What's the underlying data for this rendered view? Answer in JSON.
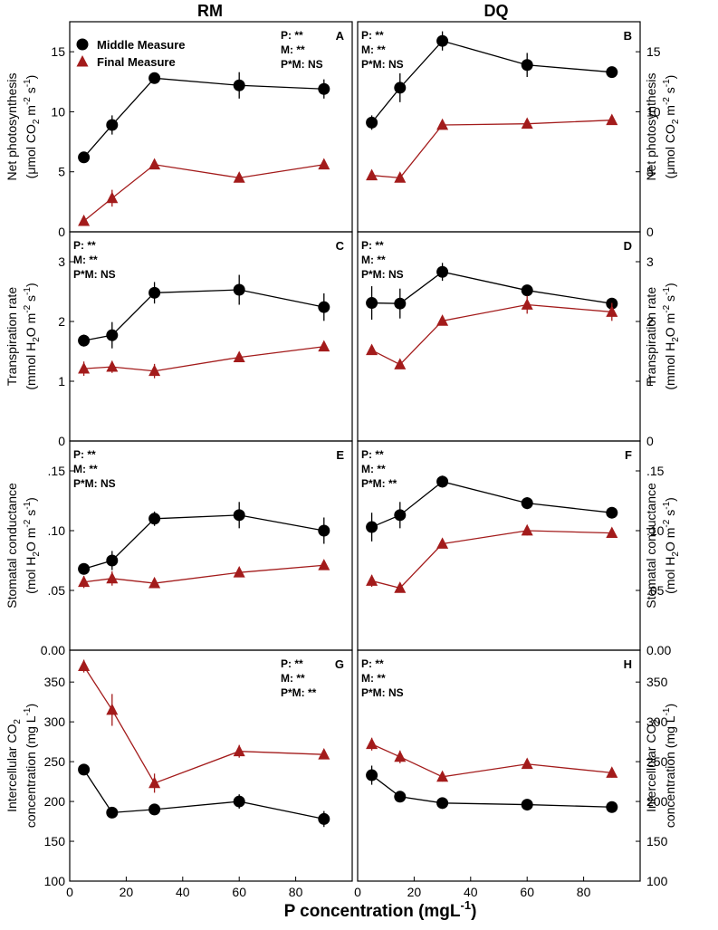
{
  "chart_data": {
    "type": "line",
    "column_titles": [
      "RM",
      "DQ"
    ],
    "xlabel": "P concentration (mgL",
    "xlabel_sup": "-1",
    "xlim": [
      0,
      100
    ],
    "xticks": [
      "0",
      "20",
      "40",
      "60",
      "80"
    ],
    "x": [
      5,
      15,
      30,
      60,
      90
    ],
    "legend": {
      "series": [
        {
          "name": "Middle Measure",
          "color": "#000000",
          "marker": "circle"
        },
        {
          "name": "Final Measure",
          "color": "#a31b1b",
          "marker": "triangle"
        }
      ],
      "location": "top-left"
    },
    "rows": [
      {
        "id": "photosynthesis",
        "ylabel_line1": "Net photosynthesis",
        "ylabel_line2": "(μmol CO",
        "ylabel_sub": "2",
        "ylabel_unit": " m",
        "ylabel_sup1": "-2",
        "ylabel_mid": " s",
        "ylabel_sup2": "-1",
        "ylabel_end": ")",
        "ylim": [
          0,
          17.5
        ],
        "yticks": [
          0,
          5,
          10,
          15
        ],
        "ytick_labels": [
          "0",
          "5",
          "10",
          "15"
        ],
        "panels": [
          {
            "letter": "A",
            "stats": [
              "P: **",
              "M: **",
              "P*M: NS"
            ],
            "stats_location": "top-right",
            "series": [
              {
                "name": "Middle Measure",
                "values": [
                  6.2,
                  8.9,
                  12.8,
                  12.2,
                  11.9
                ],
                "errors": [
                  0.3,
                  0.8,
                  0.4,
                  1.1,
                  0.8
                ]
              },
              {
                "name": "Final Measure",
                "values": [
                  0.9,
                  2.8,
                  5.6,
                  4.5,
                  5.6
                ],
                "errors": [
                  0.2,
                  0.7,
                  0.3,
                  0.3,
                  0.2
                ]
              }
            ]
          },
          {
            "letter": "B",
            "stats": [
              "P: **",
              "M: **",
              "P*M: NS"
            ],
            "stats_location": "top-left",
            "series": [
              {
                "name": "Middle Measure",
                "values": [
                  9.1,
                  12.0,
                  15.9,
                  13.9,
                  13.3
                ],
                "errors": [
                  0.6,
                  1.2,
                  0.8,
                  1.0,
                  0.4
                ]
              },
              {
                "name": "Final Measure",
                "values": [
                  4.7,
                  4.5,
                  8.9,
                  9.0,
                  9.3
                ],
                "errors": [
                  0.3,
                  0.2,
                  0.3,
                  0.2,
                  0.2
                ]
              }
            ]
          }
        ]
      },
      {
        "id": "transpiration",
        "ylabel_line1": "Transpiration rate",
        "ylabel_line2": "(mmol H",
        "ylabel_sub": "2",
        "ylabel_unit": "O m",
        "ylabel_sup1": "-2",
        "ylabel_mid": " s",
        "ylabel_sup2": "-1",
        "ylabel_end": ")",
        "ylim": [
          0,
          3.5
        ],
        "yticks": [
          0,
          1,
          2,
          3
        ],
        "ytick_labels": [
          "0",
          "1",
          "2",
          "3"
        ],
        "panels": [
          {
            "letter": "C",
            "stats": [
              "P: **",
              "M: **",
              "P*M: NS"
            ],
            "stats_location": "top-left",
            "series": [
              {
                "name": "Middle Measure",
                "values": [
                  1.68,
                  1.77,
                  2.48,
                  2.53,
                  2.24
                ],
                "errors": [
                  0.1,
                  0.22,
                  0.18,
                  0.25,
                  0.23
                ]
              },
              {
                "name": "Final Measure",
                "values": [
                  1.21,
                  1.24,
                  1.17,
                  1.4,
                  1.58
                ],
                "errors": [
                  0.12,
                  0.1,
                  0.12,
                  0.06,
                  0.08
                ]
              }
            ]
          },
          {
            "letter": "D",
            "stats": [
              "P: **",
              "M: **",
              "P*M: NS"
            ],
            "stats_location": "top-left",
            "series": [
              {
                "name": "Middle Measure",
                "values": [
                  2.31,
                  2.3,
                  2.83,
                  2.52,
                  2.3
                ],
                "errors": [
                  0.28,
                  0.25,
                  0.15,
                  0.08,
                  0.06
                ]
              },
              {
                "name": "Final Measure",
                "values": [
                  1.52,
                  1.28,
                  2.01,
                  2.28,
                  2.16
                ],
                "errors": [
                  0.08,
                  0.06,
                  0.06,
                  0.15,
                  0.15
                ]
              }
            ]
          }
        ]
      },
      {
        "id": "conductance",
        "ylabel_line1": "Stomatal conductance",
        "ylabel_line2": "(mol H",
        "ylabel_sub": "2",
        "ylabel_unit": "O m",
        "ylabel_sup1": "-2",
        "ylabel_mid": " s",
        "ylabel_sup2": "-1",
        "ylabel_end": ")",
        "ylim": [
          0,
          0.175
        ],
        "yticks": [
          0,
          0.05,
          0.1,
          0.15
        ],
        "ytick_labels": [
          "0.00",
          ".05",
          ".10",
          ".15"
        ],
        "panels": [
          {
            "letter": "E",
            "stats": [
              "P: **",
              "M: **",
              "P*M: NS"
            ],
            "stats_location": "top-left",
            "series": [
              {
                "name": "Middle Measure",
                "values": [
                  0.068,
                  0.075,
                  0.11,
                  0.113,
                  0.1
                ],
                "errors": [
                  0.003,
                  0.008,
                  0.006,
                  0.011,
                  0.011
                ]
              },
              {
                "name": "Final Measure",
                "values": [
                  0.057,
                  0.06,
                  0.056,
                  0.065,
                  0.071
                ],
                "errors": [
                  0.005,
                  0.006,
                  0.004,
                  0.003,
                  0.003
                ]
              }
            ]
          },
          {
            "letter": "F",
            "stats": [
              "P: **",
              "M: **",
              "P*M: **"
            ],
            "stats_location": "top-left",
            "series": [
              {
                "name": "Middle Measure",
                "values": [
                  0.103,
                  0.113,
                  0.141,
                  0.123,
                  0.115
                ],
                "errors": [
                  0.012,
                  0.011,
                  0.005,
                  0.005,
                  0.004
                ]
              },
              {
                "name": "Final Measure",
                "values": [
                  0.058,
                  0.052,
                  0.089,
                  0.1,
                  0.098
                ],
                "errors": [
                  0.005,
                  0.003,
                  0.003,
                  0.004,
                  0.003
                ]
              }
            ]
          }
        ]
      },
      {
        "id": "intercellular",
        "ylabel_line1": "Intercellular CO",
        "ylabel_line1_sub": "2",
        "ylabel_line2": "concentration (mg L",
        "ylabel_sub": "",
        "ylabel_unit": "",
        "ylabel_sup1": "-1",
        "ylabel_mid": "",
        "ylabel_sup2": "",
        "ylabel_end": ")",
        "ylim": [
          100,
          390
        ],
        "yticks": [
          100,
          150,
          200,
          250,
          300,
          350
        ],
        "ytick_labels": [
          "100",
          "150",
          "200",
          "250",
          "300",
          "350"
        ],
        "panels": [
          {
            "letter": "G",
            "stats": [
              "P: **",
              "M: **",
              "P*M: **"
            ],
            "stats_location": "top-right",
            "series": [
              {
                "name": "Middle Measure",
                "values": [
                  240,
                  186,
                  190,
                  200,
                  178
                ],
                "errors": [
                  6,
                  5,
                  6,
                  9,
                  10
                ]
              },
              {
                "name": "Final Measure",
                "values": [
                  370,
                  315,
                  223,
                  263,
                  259
                ],
                "errors": [
                  8,
                  20,
                  12,
                  8,
                  5
                ]
              }
            ]
          },
          {
            "letter": "H",
            "stats": [
              "P: **",
              "M: **",
              "P*M: NS"
            ],
            "stats_location": "top-left",
            "series": [
              {
                "name": "Middle Measure",
                "values": [
                  233,
                  206,
                  198,
                  196,
                  193
                ],
                "errors": [
                  12,
                  6,
                  5,
                  5,
                  6
                ]
              },
              {
                "name": "Final Measure",
                "values": [
                  272,
                  256,
                  231,
                  247,
                  236
                ],
                "errors": [
                  8,
                  8,
                  6,
                  5,
                  6
                ]
              }
            ]
          }
        ]
      }
    ]
  }
}
